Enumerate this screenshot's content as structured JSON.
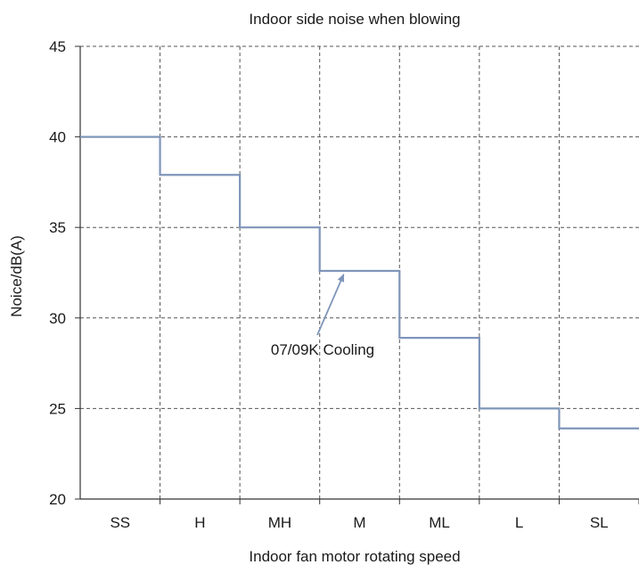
{
  "chart_data": {
    "type": "line",
    "step": true,
    "title": "Indoor side noise when blowing",
    "xlabel": "Indoor fan motor rotating speed",
    "ylabel": "Noice/dB(A)",
    "categories": [
      "SS",
      "H",
      "MH",
      "M",
      "ML",
      "L",
      "SL"
    ],
    "series": [
      {
        "values": [
          40,
          37.9,
          35,
          32.6,
          28.9,
          25,
          23.9
        ],
        "color": "#7f95b9"
      }
    ],
    "ylim": [
      20,
      45
    ],
    "yticks": [
      20,
      25,
      30,
      35,
      40,
      45
    ],
    "grid": true,
    "grid_style": "dashed",
    "annotations": [
      {
        "text": "07/09K Cooling",
        "arrow_to_category": "M",
        "arrow_to_value": 32.6
      }
    ],
    "colors": {
      "line": "#7f95b9",
      "arrow": "#7f95b9",
      "grid": "#555555",
      "axis": "#333333"
    }
  }
}
